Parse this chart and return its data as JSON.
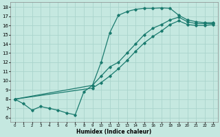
{
  "xlabel": "Humidex (Indice chaleur)",
  "xlim": [
    -0.5,
    23.5
  ],
  "ylim": [
    5.5,
    18.5
  ],
  "xticks": [
    0,
    1,
    2,
    3,
    4,
    5,
    6,
    7,
    8,
    9,
    10,
    11,
    12,
    13,
    14,
    15,
    16,
    17,
    18,
    19,
    20,
    21,
    22,
    23
  ],
  "yticks": [
    6,
    7,
    8,
    9,
    10,
    11,
    12,
    13,
    14,
    15,
    16,
    17,
    18
  ],
  "bg_color": "#c5e8e0",
  "grid_color": "#aad4cc",
  "line_color": "#1a7a6e",
  "line1_x": [
    0,
    1,
    2,
    3,
    4,
    5,
    6,
    7,
    8,
    9,
    10,
    11,
    12,
    13,
    14,
    15,
    16,
    17,
    18,
    19,
    20,
    21,
    22,
    23
  ],
  "line1_y": [
    8.0,
    7.5,
    6.8,
    7.2,
    7.0,
    6.8,
    6.5,
    6.3,
    8.8,
    9.5,
    12.0,
    15.2,
    17.1,
    17.5,
    17.75,
    17.85,
    17.85,
    17.9,
    17.85,
    17.1,
    16.6,
    16.4,
    16.3,
    16.3
  ],
  "line2_x": [
    0,
    9,
    10,
    11,
    12,
    13,
    14,
    15,
    16,
    17,
    18,
    19,
    20,
    21,
    22,
    23
  ],
  "line2_y": [
    8.0,
    9.5,
    10.5,
    11.5,
    12.0,
    13.0,
    14.0,
    15.0,
    15.7,
    16.1,
    16.6,
    16.9,
    16.4,
    16.2,
    16.2,
    16.2
  ],
  "line3_x": [
    0,
    9,
    10,
    11,
    12,
    13,
    14,
    15,
    16,
    17,
    18,
    19,
    20,
    21,
    22,
    23
  ],
  "line3_y": [
    8.0,
    9.2,
    9.8,
    10.5,
    11.3,
    12.2,
    13.2,
    14.1,
    14.8,
    15.4,
    16.1,
    16.5,
    16.1,
    16.0,
    16.0,
    16.1
  ]
}
